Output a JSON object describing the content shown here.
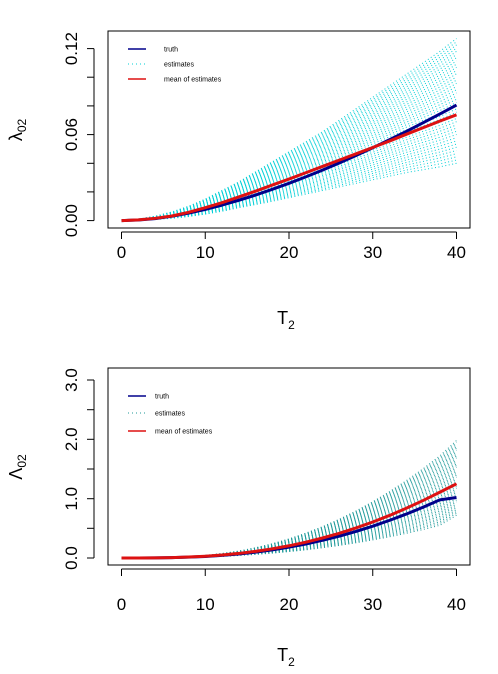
{
  "chart_data": [
    {
      "type": "line",
      "ylabel": "λ",
      "ylabel_sub": "02",
      "xlabel": "T",
      "xlabel_sub": "2",
      "xlim": [
        0,
        40
      ],
      "ylim": [
        -0.006,
        0.138
      ],
      "x_ticks": [
        "0",
        "10",
        "20",
        "30",
        "40"
      ],
      "x_tick_values": [
        0,
        10,
        20,
        30,
        40
      ],
      "y_ticks": [
        "0.00",
        "0.06",
        "0.12"
      ],
      "y_tick_values": [
        0.0,
        0.06,
        0.12
      ],
      "y_minor_ticks": [
        0.0,
        0.02,
        0.04,
        0.06,
        0.08,
        0.1,
        0.12
      ],
      "legend": [
        {
          "label": "truth",
          "color": "#00008b",
          "style": "solid"
        },
        {
          "label": "estimates",
          "color": "#00cfd6",
          "style": "dotted"
        },
        {
          "label": "mean of estimates",
          "color": "#dd1111",
          "style": "solid"
        }
      ],
      "x": [
        0,
        2,
        4,
        6,
        8,
        10,
        12,
        14,
        16,
        18,
        20,
        22,
        24,
        26,
        28,
        30,
        32,
        34,
        36,
        38,
        40
      ],
      "series": [
        {
          "name": "truth",
          "color": "#00008b",
          "values": [
            0.0,
            0.0004,
            0.0014,
            0.003,
            0.0052,
            0.0078,
            0.0108,
            0.0142,
            0.0178,
            0.0218,
            0.026,
            0.0305,
            0.0352,
            0.0402,
            0.0454,
            0.0508,
            0.0564,
            0.0622,
            0.0682,
            0.0743,
            0.0806
          ]
        },
        {
          "name": "mean of estimates",
          "color": "#dd1111",
          "values": [
            0.0,
            0.0005,
            0.0016,
            0.0032,
            0.0058,
            0.009,
            0.0125,
            0.0165,
            0.0205,
            0.0248,
            0.029,
            0.0334,
            0.0378,
            0.0422,
            0.0466,
            0.051,
            0.0555,
            0.0602,
            0.0648,
            0.0694,
            0.0738
          ]
        }
      ],
      "estimates_band": {
        "lower": [
          0.0,
          0.0002,
          0.0008,
          0.0016,
          0.0028,
          0.0045,
          0.0065,
          0.009,
          0.0112,
          0.0135,
          0.016,
          0.0185,
          0.021,
          0.0235,
          0.026,
          0.0285,
          0.031,
          0.0335,
          0.0355,
          0.0375,
          0.04
        ],
        "upper": [
          0.0,
          0.001,
          0.003,
          0.006,
          0.01,
          0.015,
          0.021,
          0.027,
          0.034,
          0.041,
          0.048,
          0.055,
          0.062,
          0.07,
          0.078,
          0.086,
          0.094,
          0.102,
          0.11,
          0.118,
          0.127
        ],
        "count": 40
      }
    },
    {
      "type": "line",
      "ylabel": "Λ",
      "ylabel_sub": "02",
      "xlabel": "T",
      "xlabel_sub": "2",
      "xlim": [
        0,
        40
      ],
      "ylim": [
        -0.05,
        3.15
      ],
      "x_ticks": [
        "0",
        "10",
        "20",
        "30",
        "40"
      ],
      "x_tick_values": [
        0,
        10,
        20,
        30,
        40
      ],
      "y_ticks": [
        "0.0",
        "1.0",
        "2.0",
        "3.0"
      ],
      "y_tick_values": [
        0.0,
        1.0,
        2.0,
        3.0
      ],
      "y_minor_ticks": [
        0.0,
        0.5,
        1.0,
        1.5,
        2.0,
        2.5,
        3.0
      ],
      "legend": [
        {
          "label": "truth",
          "color": "#00008b",
          "style": "solid"
        },
        {
          "label": "estimates",
          "color": "#1f9a9a",
          "style": "dotted"
        },
        {
          "label": "mean of estimates",
          "color": "#dd1111",
          "style": "solid"
        }
      ],
      "x": [
        0,
        2,
        4,
        6,
        8,
        10,
        12,
        14,
        16,
        18,
        20,
        22,
        24,
        26,
        28,
        30,
        32,
        34,
        36,
        38,
        40
      ],
      "series": [
        {
          "name": "truth",
          "color": "#00008b",
          "values": [
            0.0,
            0.0002,
            0.002,
            0.006,
            0.014,
            0.026,
            0.044,
            0.068,
            0.099,
            0.137,
            0.182,
            0.236,
            0.298,
            0.368,
            0.448,
            0.536,
            0.634,
            0.74,
            0.856,
            0.98,
            1.02
          ]
        },
        {
          "name": "mean of estimates",
          "color": "#dd1111",
          "values": [
            0.0,
            0.0003,
            0.002,
            0.007,
            0.016,
            0.03,
            0.05,
            0.077,
            0.112,
            0.155,
            0.206,
            0.267,
            0.337,
            0.417,
            0.507,
            0.607,
            0.717,
            0.838,
            0.968,
            1.108,
            1.25
          ]
        }
      ],
      "estimates_band": {
        "lower": [
          0.0,
          0.0002,
          0.0014,
          0.004,
          0.009,
          0.017,
          0.028,
          0.042,
          0.06,
          0.082,
          0.108,
          0.138,
          0.173,
          0.212,
          0.256,
          0.305,
          0.358,
          0.416,
          0.48,
          0.55,
          0.72
        ],
        "upper": [
          0.0,
          0.0005,
          0.003,
          0.01,
          0.023,
          0.044,
          0.075,
          0.117,
          0.172,
          0.24,
          0.322,
          0.418,
          0.528,
          0.653,
          0.793,
          0.948,
          1.118,
          1.303,
          1.503,
          1.72,
          1.98
        ],
        "count": 40
      }
    }
  ]
}
